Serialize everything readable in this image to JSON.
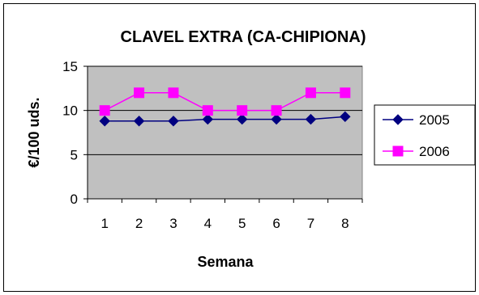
{
  "chart_data": {
    "type": "line",
    "title": "CLAVEL EXTRA (CA-CHIPIONA)",
    "xlabel": "Semana",
    "ylabel": "€/100 uds.",
    "x": [
      "1",
      "2",
      "3",
      "4",
      "5",
      "6",
      "7",
      "8"
    ],
    "yticks": [
      "0",
      "5",
      "10",
      "15"
    ],
    "ylim": [
      0,
      15
    ],
    "grid": true,
    "legend": "right",
    "plot_background": "#c0c0c0",
    "series": [
      {
        "name": "2005",
        "values": [
          8.8,
          8.8,
          8.8,
          9.0,
          9.0,
          9.0,
          9.0,
          9.3
        ],
        "color": "#000080",
        "marker": "diamond"
      },
      {
        "name": "2006",
        "values": [
          10,
          12,
          12,
          10,
          10,
          10,
          12,
          12
        ],
        "color": "#ff00ff",
        "marker": "square"
      }
    ]
  }
}
